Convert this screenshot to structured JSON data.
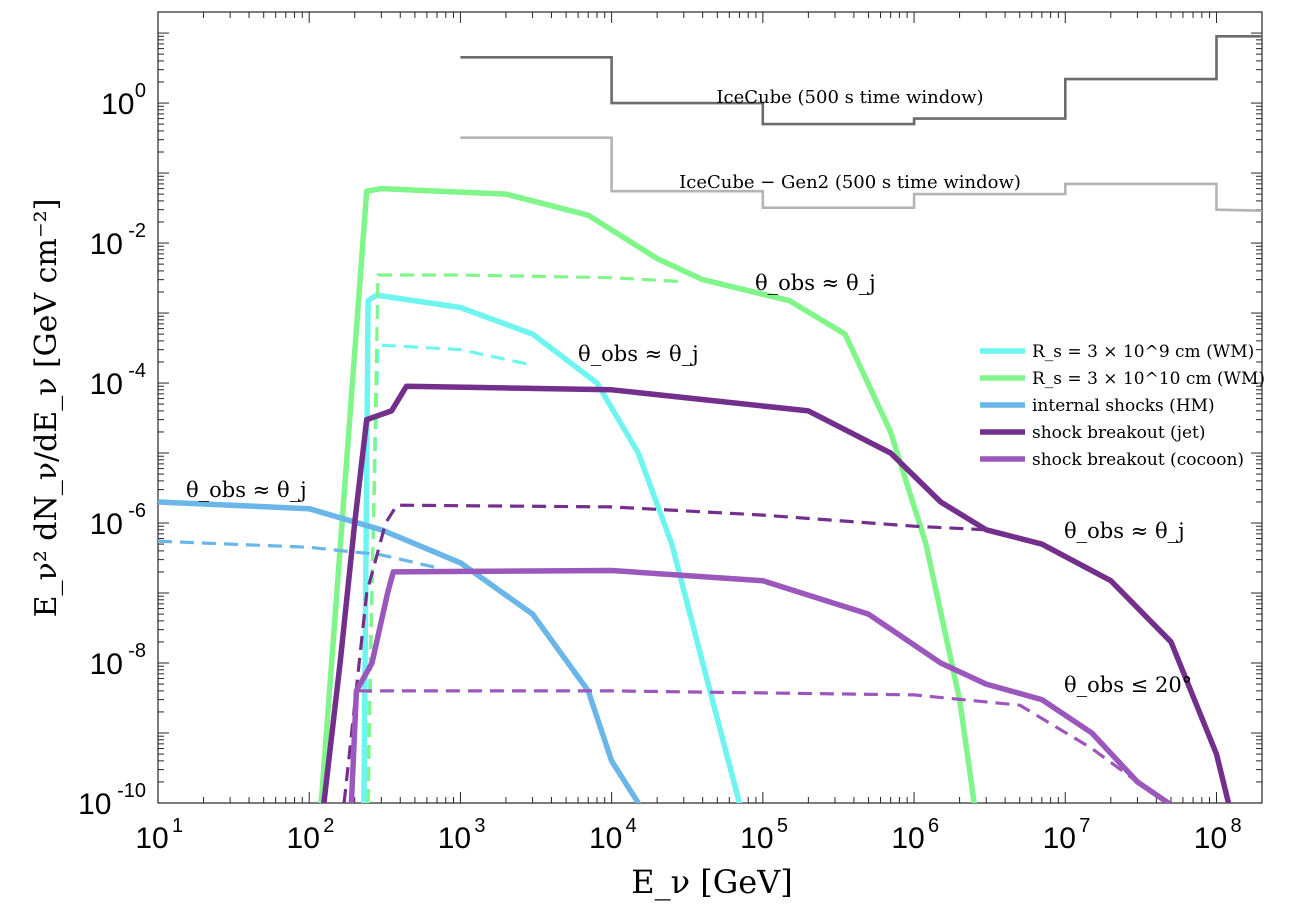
{
  "chart_data": {
    "type": "line",
    "xscale": "log",
    "yscale": "log",
    "xlim": [
      10,
      200000000
    ],
    "ylim": [
      1e-10,
      20
    ],
    "xlabel": "E_ν [GeV]",
    "ylabel": "E_ν² dN_ν/dE_ν [GeV cm⁻²]",
    "grid": false,
    "legend_position": "right",
    "x_ticks": [
      {
        "value": 10,
        "base": "10",
        "exp": "1"
      },
      {
        "value": 100,
        "base": "10",
        "exp": "2"
      },
      {
        "value": 1000,
        "base": "10",
        "exp": "3"
      },
      {
        "value": 10000,
        "base": "10",
        "exp": "4"
      },
      {
        "value": 100000,
        "base": "10",
        "exp": "5"
      },
      {
        "value": 1000000,
        "base": "10",
        "exp": "6"
      },
      {
        "value": 10000000,
        "base": "10",
        "exp": "7"
      },
      {
        "value": 100000000,
        "base": "10",
        "exp": "8"
      }
    ],
    "y_ticks": [
      {
        "value": 1,
        "base": "10",
        "exp": "0"
      },
      {
        "value": 0.01,
        "base": "10",
        "exp": "-2"
      },
      {
        "value": 0.0001,
        "base": "10",
        "exp": "-4"
      },
      {
        "value": 1e-06,
        "base": "10",
        "exp": "-6"
      },
      {
        "value": 1e-08,
        "base": "10",
        "exp": "-8"
      },
      {
        "value": 1e-10,
        "base": "10",
        "exp": "-10"
      }
    ],
    "sensitivity": [
      {
        "name": "IceCube (500 s time window)",
        "color": "#6b6b6b",
        "points": [
          [
            1000,
            4.5
          ],
          [
            10000,
            4.5
          ],
          [
            10000,
            1.0
          ],
          [
            100000,
            1.0
          ],
          [
            100000,
            0.5
          ],
          [
            1000000,
            0.5
          ],
          [
            1000000,
            0.6
          ],
          [
            10000000,
            0.6
          ],
          [
            10000000,
            2.2
          ],
          [
            100000000,
            2.2
          ],
          [
            100000000,
            9.0
          ],
          [
            200000000,
            9.0
          ]
        ]
      },
      {
        "name": "IceCube − Gen2 (500 s time window)",
        "color": "#b4b4b4",
        "points": [
          [
            1000,
            0.32
          ],
          [
            10000,
            0.32
          ],
          [
            10000,
            0.055
          ],
          [
            100000,
            0.055
          ],
          [
            100000,
            0.032
          ],
          [
            1000000,
            0.032
          ],
          [
            1000000,
            0.05
          ],
          [
            10000000,
            0.05
          ],
          [
            10000000,
            0.07
          ],
          [
            100000000,
            0.07
          ],
          [
            100000000,
            0.03
          ],
          [
            200000000,
            0.029
          ]
        ]
      }
    ],
    "series": [
      {
        "name": "R_s = 3 × 10^9 cm (WM)",
        "color": "#6ef5f0",
        "solid": [
          [
            230,
            1e-10
          ],
          [
            245,
            0.0015
          ],
          [
            280,
            0.0018
          ],
          [
            1000,
            0.0012
          ],
          [
            3000,
            0.0005
          ],
          [
            8000,
            0.0001
          ],
          [
            15000,
            1e-05
          ],
          [
            25000,
            5e-07
          ],
          [
            40000,
            1e-08
          ],
          [
            70000,
            1e-10
          ]
        ],
        "dashed": [
          [
            240,
            1e-10
          ],
          [
            285,
            0.00035
          ],
          [
            1000,
            0.0003
          ],
          [
            3000,
            0.00018
          ]
        ]
      },
      {
        "name": "R_s = 3 × 10^10 cm (WM)",
        "color": "#7ff58a",
        "solid": [
          [
            120,
            1e-10
          ],
          [
            240,
            0.055
          ],
          [
            300,
            0.06
          ],
          [
            2000,
            0.05
          ],
          [
            7000,
            0.025
          ],
          [
            20000,
            0.006
          ],
          [
            40000,
            0.003
          ],
          [
            150000,
            0.0015
          ],
          [
            350000,
            0.0005
          ],
          [
            700000,
            2e-05
          ],
          [
            1200000,
            5e-07
          ],
          [
            2000000,
            3e-09
          ],
          [
            2500000,
            1e-10
          ]
        ],
        "dashed": [
          [
            245,
            1e-10
          ],
          [
            285,
            0.0035
          ],
          [
            1000,
            0.0035
          ],
          [
            10000,
            0.0032
          ],
          [
            30000,
            0.0028
          ]
        ]
      },
      {
        "name": "internal shocks (HM)",
        "color": "#6ab6e8",
        "solid": [
          [
            10,
            2e-06
          ],
          [
            100,
            1.6e-06
          ],
          [
            300,
            8e-07
          ],
          [
            1000,
            2.7e-07
          ],
          [
            3000,
            5e-08
          ],
          [
            7000,
            4e-09
          ],
          [
            10000,
            4e-10
          ],
          [
            15000,
            1e-10
          ]
        ],
        "dashed": [
          [
            10,
            5.5e-07
          ],
          [
            100,
            4.5e-07
          ],
          [
            300,
            3.5e-07
          ],
          [
            700,
            2.3e-07
          ]
        ]
      },
      {
        "name": "shock breakout (jet)",
        "color": "#732f8c",
        "solid": [
          [
            125,
            1e-10
          ],
          [
            160,
            1e-08
          ],
          [
            200,
            1e-06
          ],
          [
            240,
            3e-05
          ],
          [
            350,
            4e-05
          ],
          [
            440,
            9e-05
          ],
          [
            10000,
            8e-05
          ],
          [
            200000,
            4e-05
          ],
          [
            700000,
            1e-05
          ],
          [
            1500000,
            2e-06
          ],
          [
            3000000,
            8e-07
          ],
          [
            7000000,
            5e-07
          ],
          [
            20000000,
            1.5e-07
          ],
          [
            50000000,
            2e-08
          ],
          [
            100000000,
            5e-10
          ],
          [
            120000000,
            1e-10
          ]
        ],
        "dashed": [
          [
            170,
            1e-10
          ],
          [
            240,
            1e-07
          ],
          [
            320,
            1e-06
          ],
          [
            380,
            1.8e-06
          ],
          [
            10000,
            1.7e-06
          ],
          [
            100000,
            1.3e-06
          ],
          [
            1000000,
            9e-07
          ],
          [
            3000000,
            8e-07
          ]
        ]
      },
      {
        "name": "shock breakout (cocoon)",
        "color": "#9b57bb",
        "solid": [
          [
            190,
            1e-10
          ],
          [
            205,
            4e-09
          ],
          [
            260,
            1e-08
          ],
          [
            330,
            1e-07
          ],
          [
            360,
            2e-07
          ],
          [
            10000,
            2.1e-07
          ],
          [
            100000,
            1.5e-07
          ],
          [
            500000,
            5e-08
          ],
          [
            1500000,
            1e-08
          ],
          [
            3000000,
            5e-09
          ],
          [
            7000000,
            3e-09
          ],
          [
            15000000,
            1e-09
          ],
          [
            30000000,
            2e-10
          ],
          [
            48000000,
            1e-10
          ]
        ],
        "dashed": [
          [
            210,
            4e-09
          ],
          [
            10000,
            4e-09
          ],
          [
            1000000,
            3.5e-09
          ],
          [
            5000000,
            2.5e-09
          ],
          [
            15000000,
            6e-10
          ],
          [
            30000000,
            2e-10
          ]
        ]
      }
    ],
    "annotations": [
      {
        "text": "θ_obs ≈ θ_j",
        "near_series": "internal shocks (HM)"
      },
      {
        "text": "θ_obs ≈ θ_j",
        "near_series": "R_s = 3 × 10^9 cm (WM)"
      },
      {
        "text": "θ_obs ≈ θ_j",
        "near_series": "R_s = 3 × 10^10 cm (WM)"
      },
      {
        "text": "θ_obs ≈ θ_j",
        "near_series": "shock breakout (jet)"
      },
      {
        "text": "θ_obs ≤ 20°",
        "near_series": "shock breakout (cocoon)"
      }
    ],
    "legend": [
      "R_s = 3 × 10^9 cm (WM)",
      "R_s = 3 × 10^10 cm (WM)",
      "internal shocks (HM)",
      "shock breakout (jet)",
      "shock breakout (cocoon)"
    ]
  }
}
